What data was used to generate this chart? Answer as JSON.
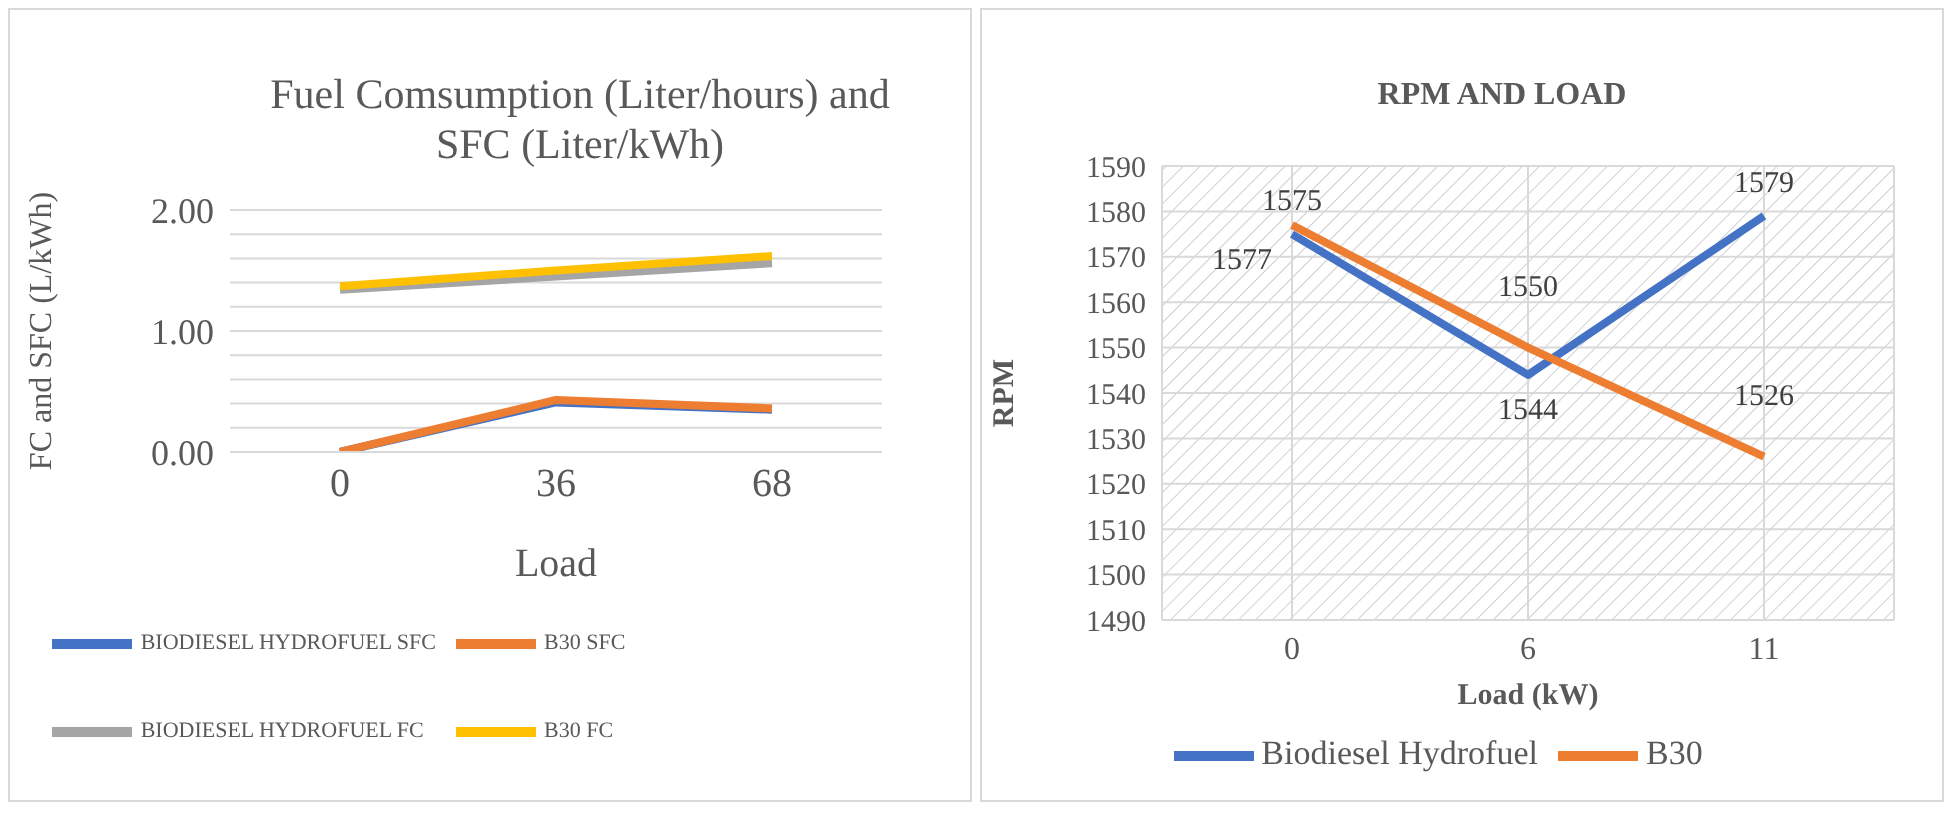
{
  "chart_data": [
    {
      "type": "line",
      "title": "Fuel Comsumption (Liter/hours) and SFC (Liter/kWh)",
      "xlabel": "Load",
      "ylabel": "FC and SFC (L/kWh)",
      "categories": [
        "0",
        "36",
        "68"
      ],
      "series": [
        {
          "name": "BIODIESEL HYDROFUEL SFC",
          "color": "#4472c4",
          "values": [
            0,
            0.41,
            0.35
          ]
        },
        {
          "name": "B30 SFC",
          "color": "#ed7d31",
          "values": [
            0,
            0.43,
            0.36
          ]
        },
        {
          "name": "BIODIESEL HYDROFUEL FC",
          "color": "#a5a5a5",
          "values": [
            1.34,
            1.45,
            1.56
          ]
        },
        {
          "name": "B30 FC",
          "color": "#ffc000",
          "values": [
            1.37,
            1.5,
            1.62
          ]
        }
      ],
      "ylim": [
        0,
        2
      ],
      "yticks": [
        {
          "value": 0,
          "label": "0.00"
        },
        {
          "value": 0.2,
          "label": null
        },
        {
          "value": 0.4,
          "label": null
        },
        {
          "value": 0.6,
          "label": null
        },
        {
          "value": 0.8,
          "label": null
        },
        {
          "value": 1,
          "label": "1.00"
        },
        {
          "value": 1.2,
          "label": null
        },
        {
          "value": 1.4,
          "label": null
        },
        {
          "value": 1.6,
          "label": null
        },
        {
          "value": 1.8,
          "label": null
        },
        {
          "value": 2,
          "label": "2.00"
        }
      ],
      "grid": "y",
      "legend": "bottom",
      "marker": "none",
      "line_style": "solid"
    },
    {
      "type": "line",
      "title": "RPM AND LOAD",
      "xlabel": "Load (kW)",
      "ylabel": "RPM",
      "categories": [
        "0",
        "6",
        "11"
      ],
      "series": [
        {
          "name": "Biodiesel Hydrofuel",
          "color": "#4472c4",
          "values": [
            1575,
            1544,
            1579
          ]
        },
        {
          "name": "B30",
          "color": "#ed7d31",
          "values": [
            1577,
            1550,
            1526
          ]
        }
      ],
      "ylim": [
        1490,
        1590
      ],
      "yticks": [
        1490,
        1500,
        1510,
        1520,
        1530,
        1540,
        1550,
        1560,
        1570,
        1580,
        1590
      ],
      "grid": true,
      "legend": "bottom",
      "marker": "none",
      "line_style": "solid",
      "data_labels": true
    }
  ]
}
